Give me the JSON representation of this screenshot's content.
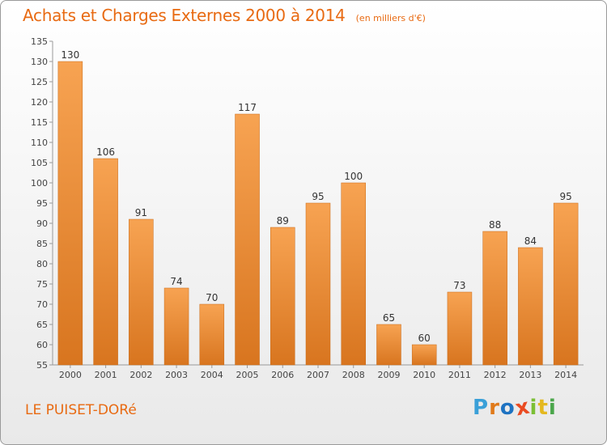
{
  "header": {
    "title": "Achats et Charges Externes 2000 à 2014",
    "unit": "(en milliers d'€)"
  },
  "footer": {
    "place": "LE PUISET-DORé",
    "brand": [
      "P",
      "r",
      "o",
      "x",
      "i",
      "t",
      "i"
    ],
    "brand_colors": [
      "#3aa0d8",
      "#e07a1a",
      "#1e73c2",
      "#ea4b22",
      "#7bbf35",
      "#e4b81f",
      "#4aa64a"
    ]
  },
  "chart_data": {
    "type": "bar",
    "title": "Achats et Charges Externes 2000 à 2014",
    "subtitle": "(en milliers d'€)",
    "categories": [
      "2000",
      "2001",
      "2002",
      "2003",
      "2004",
      "2005",
      "2006",
      "2007",
      "2008",
      "2009",
      "2010",
      "2011",
      "2012",
      "2013",
      "2014"
    ],
    "values": [
      130,
      106,
      91,
      74,
      70,
      117,
      89,
      95,
      100,
      65,
      60,
      73,
      88,
      84,
      95
    ],
    "data_labels": [
      "130",
      "106",
      "91",
      "74",
      "70",
      "117",
      "89",
      "95",
      "100",
      "65",
      "60",
      "73",
      "88",
      "84",
      "95"
    ],
    "ylim": [
      55,
      135
    ],
    "yticks": [
      "55",
      "60",
      "65",
      "70",
      "75",
      "80",
      "85",
      "90",
      "95",
      "100",
      "105",
      "110",
      "115",
      "120",
      "125",
      "130",
      "135"
    ],
    "grid": false,
    "bar_color_top": "#f7a352",
    "bar_color_bottom": "#d8751f"
  }
}
